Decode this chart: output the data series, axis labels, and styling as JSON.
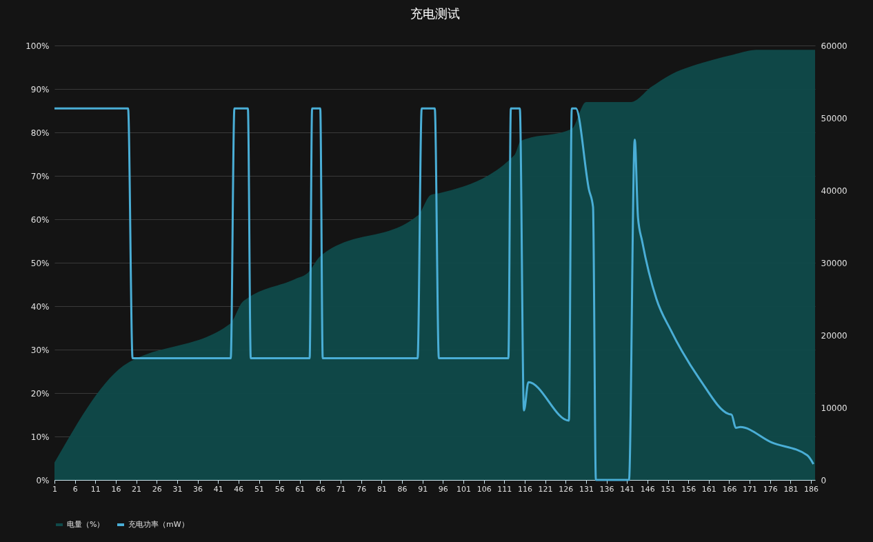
{
  "chart_data": {
    "type": "line",
    "title": "充电测试",
    "legend": "bottom",
    "grid": "y",
    "xlim": [
      1,
      187
    ],
    "xticks": [
      1,
      6,
      11,
      16,
      21,
      26,
      31,
      36,
      41,
      46,
      51,
      56,
      61,
      66,
      71,
      76,
      81,
      86,
      91,
      96,
      101,
      106,
      111,
      116,
      121,
      126,
      131,
      136,
      141,
      146,
      151,
      156,
      161,
      166,
      171,
      176,
      181,
      186
    ],
    "ylim": [
      0,
      100
    ],
    "yticks": [
      {
        "value": 0,
        "label": "0%"
      },
      {
        "value": 10,
        "label": "10%"
      },
      {
        "value": 20,
        "label": "20%"
      },
      {
        "value": 30,
        "label": "30%"
      },
      {
        "value": 40,
        "label": "40%"
      },
      {
        "value": 50,
        "label": "50%"
      },
      {
        "value": 60,
        "label": "60%"
      },
      {
        "value": 70,
        "label": "70%"
      },
      {
        "value": 80,
        "label": "80%"
      },
      {
        "value": 90,
        "label": "90%"
      },
      {
        "value": 100,
        "label": "100%"
      }
    ],
    "y2lim": [
      0,
      60000
    ],
    "y2ticks": [
      0,
      10000,
      20000,
      30000,
      40000,
      50000,
      60000
    ],
    "series": [
      {
        "name": "电量（%）",
        "type": "area",
        "color": "#0f4a4a",
        "x": [
          1,
          19,
          20,
          44,
          47,
          48,
          60,
          63,
          66,
          90,
          93,
          95,
          113.5,
          115,
          127.5,
          131,
          142,
          147,
          151.7,
          157,
          162,
          167,
          172.8,
          187
        ],
        "values": [
          4,
          27,
          27.5,
          36,
          41,
          41.7,
          46.3,
          47.7,
          51.5,
          61,
          65.6,
          66,
          74.8,
          78,
          80.8,
          87,
          87,
          90.5,
          93.3,
          95.3,
          96.7,
          97.9,
          99,
          99
        ]
      },
      {
        "name": "充电功率（mW）",
        "axis": "y2",
        "color": "#4aaed6",
        "x": [
          1,
          19,
          20.1,
          44.1,
          45,
          48.3,
          49,
          63.4,
          64,
          66,
          66.6,
          89.8,
          90.8,
          94,
          95,
          112,
          112.6,
          114.8,
          115.8,
          116.9,
          126.8,
          127.5,
          128.5,
          131.7,
          132.7,
          133.4,
          141.5,
          142.9,
          143.7,
          144.7,
          148.2,
          151.7,
          158.8,
          165.9,
          166.6,
          167.6,
          168.7,
          176.3,
          185.1,
          186.6
        ],
        "values": [
          51300,
          51300,
          16800,
          16800,
          51300,
          51300,
          16800,
          16800,
          51300,
          51300,
          16800,
          16800,
          51300,
          51300,
          16800,
          16800,
          51300,
          51300,
          9600,
          13500,
          8200,
          51300,
          51300,
          40100,
          37700,
          0,
          0,
          47000,
          36200,
          33000,
          25000,
          20700,
          13900,
          9100,
          9000,
          7200,
          7300,
          5200,
          3400,
          2200
        ]
      }
    ]
  }
}
